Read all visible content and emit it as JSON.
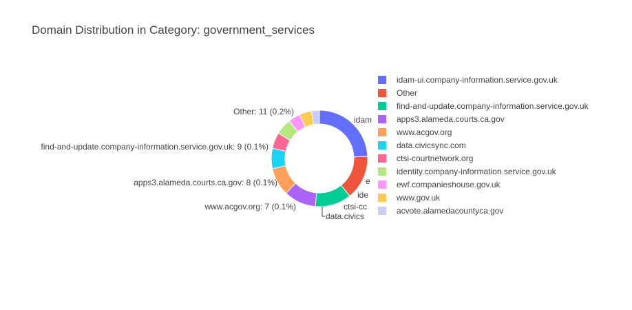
{
  "chart_data": {
    "type": "pie",
    "hole": true,
    "title": "Domain Distribution in Category: government_services",
    "slices": [
      {
        "label": "idam-ui.company-information.service.gov.uk",
        "value": 18,
        "color": "#636efa"
      },
      {
        "label": "Other",
        "value": 11,
        "percent": "0.2%",
        "color": "#ef553b"
      },
      {
        "label": "find-and-update.company-information.service.gov.uk",
        "value": 9,
        "percent": "0.1%",
        "color": "#00cc96"
      },
      {
        "label": "apps3.alameda.courts.ca.gov",
        "value": 8,
        "percent": "0.1%",
        "color": "#ab63fa"
      },
      {
        "label": "www.acgov.org",
        "value": 7,
        "percent": "0.1%",
        "color": "#ffa15a"
      },
      {
        "label": "data.civicsync.com",
        "value": 5,
        "color": "#19d3f3"
      },
      {
        "label": "ctsi-courtnetwork.org",
        "value": 4,
        "color": "#ff6692"
      },
      {
        "label": "identity.company-information.service.gov.uk",
        "value": 4,
        "color": "#b6e880"
      },
      {
        "label": "ewf.companieshouse.gov.uk",
        "value": 3,
        "color": "#ff97ff"
      },
      {
        "label": "www.gov.uk",
        "value": 3,
        "color": "#fecb52"
      },
      {
        "label": "acvote.alamedacountyca.gov",
        "value": 2,
        "color": "#c8cdfa"
      }
    ],
    "truncated_outside_labels": [
      "idam",
      "e",
      "ide",
      "ctsi-cc",
      "data.civics"
    ],
    "legend_position": "right"
  }
}
